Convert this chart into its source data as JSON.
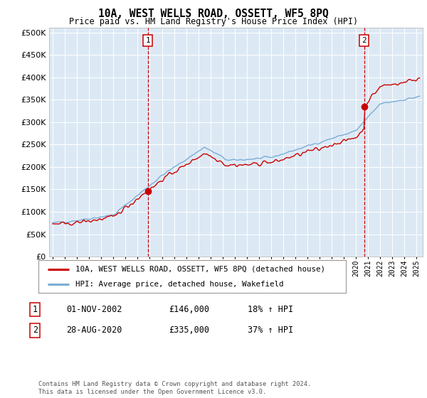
{
  "title": "10A, WEST WELLS ROAD, OSSETT, WF5 8PQ",
  "subtitle": "Price paid vs. HM Land Registry's House Price Index (HPI)",
  "fig_bg_color": "#ffffff",
  "plot_bg_color": "#dce9f5",
  "yticks": [
    0,
    50000,
    100000,
    150000,
    200000,
    250000,
    300000,
    350000,
    400000,
    450000,
    500000
  ],
  "ylim": [
    0,
    510000
  ],
  "xlim_start": 1994.7,
  "xlim_end": 2025.5,
  "sale1_date": 2002.833,
  "sale1_price": 146000,
  "sale1_label": "1",
  "sale2_date": 2020.667,
  "sale2_price": 335000,
  "sale2_label": "2",
  "legend_line1": "10A, WEST WELLS ROAD, OSSETT, WF5 8PQ (detached house)",
  "legend_line2": "HPI: Average price, detached house, Wakefield",
  "table_row1_num": "1",
  "table_row1_date": "01-NOV-2002",
  "table_row1_price": "£146,000",
  "table_row1_hpi": "18% ↑ HPI",
  "table_row2_num": "2",
  "table_row2_date": "28-AUG-2020",
  "table_row2_price": "£335,000",
  "table_row2_hpi": "37% ↑ HPI",
  "footer": "Contains HM Land Registry data © Crown copyright and database right 2024.\nThis data is licensed under the Open Government Licence v3.0.",
  "red_color": "#cc0000",
  "blue_color": "#7aadd4",
  "grid_color": "#ffffff"
}
